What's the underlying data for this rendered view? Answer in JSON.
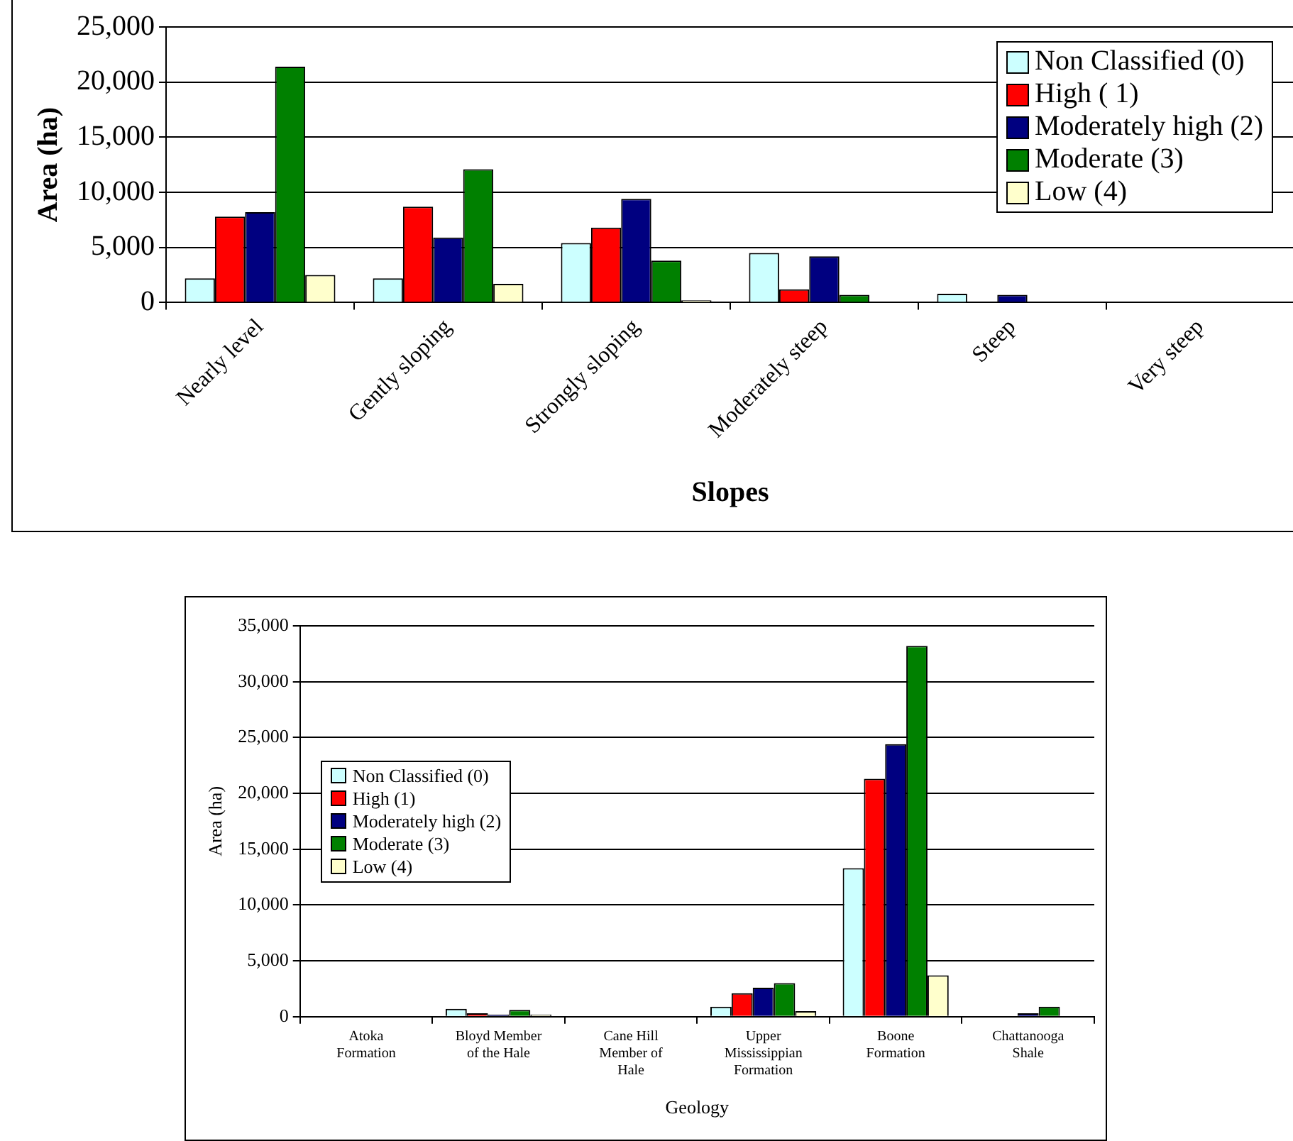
{
  "chart_data": [
    {
      "type": "bar",
      "xlabel": "Slopes",
      "ylabel": "Area (ha)",
      "categories": [
        "Nearly level",
        "Gently sloping",
        "Strongly sloping",
        "Moderately steep",
        "Steep",
        "Very steep"
      ],
      "ylim": [
        0,
        25000
      ],
      "yticks": [
        0,
        {
          "value": 5000,
          "label": "5,000"
        },
        {
          "value": 10000,
          "label": "10,000"
        },
        {
          "value": 15000,
          "label": "15,000"
        },
        {
          "value": 20000,
          "label": "20,000"
        },
        {
          "value": 25000,
          "label": "25,000"
        }
      ],
      "grid": "y",
      "legend": "top right",
      "series": [
        {
          "name": "Non Classified (0)",
          "color": "#ccffff",
          "values": [
            2200,
            2200,
            5400,
            4500,
            800,
            0
          ]
        },
        {
          "name": "High ( 1)",
          "color": "#ff0000",
          "values": [
            7800,
            8700,
            6800,
            1200,
            0,
            0
          ]
        },
        {
          "name": "Moderately high (2)",
          "color": "#000080",
          "values": [
            8200,
            5900,
            9400,
            4200,
            700,
            0
          ]
        },
        {
          "name": "Moderate (3)",
          "color": "#008000",
          "values": [
            21400,
            12100,
            3800,
            700,
            0,
            0
          ]
        },
        {
          "name": "Low (4)",
          "color": "#ffffcc",
          "values": [
            2500,
            1700,
            200,
            0,
            0,
            0
          ]
        }
      ]
    },
    {
      "type": "bar",
      "xlabel": "Geology",
      "ylabel": "Area (ha)",
      "categories": [
        "Atoka Formation",
        "Bloyd Member of the Hale",
        "Cane Hill Member of Hale",
        "Upper Mississippian Formation",
        "Boone Formation",
        "Chattanooga Shale"
      ],
      "ylim": [
        0,
        35000
      ],
      "yticks": [
        0,
        {
          "value": 5000,
          "label": "5,000"
        },
        {
          "value": 10000,
          "label": "10,000"
        },
        {
          "value": 15000,
          "label": "15,000"
        },
        {
          "value": 20000,
          "label": "20,000"
        },
        {
          "value": 25000,
          "label": "25,000"
        },
        {
          "value": 30000,
          "label": "30,000"
        },
        {
          "value": 35000,
          "label": "35,000"
        }
      ],
      "grid": "y",
      "legend": "left",
      "series": [
        {
          "name": "Non Classified (0)",
          "color": "#ccffff",
          "values": [
            0,
            700,
            0,
            900,
            13300,
            0
          ]
        },
        {
          "name": "High (1)",
          "color": "#ff0000",
          "values": [
            0,
            300,
            0,
            2100,
            21300,
            0
          ]
        },
        {
          "name": "Moderately high (2)",
          "color": "#000080",
          "values": [
            0,
            200,
            0,
            2600,
            24400,
            300
          ]
        },
        {
          "name": "Moderate (3)",
          "color": "#008000",
          "values": [
            0,
            600,
            0,
            3000,
            33200,
            900
          ]
        },
        {
          "name": "Low (4)",
          "color": "#ffffcc",
          "values": [
            0,
            200,
            0,
            500,
            3700,
            0
          ]
        }
      ]
    }
  ]
}
